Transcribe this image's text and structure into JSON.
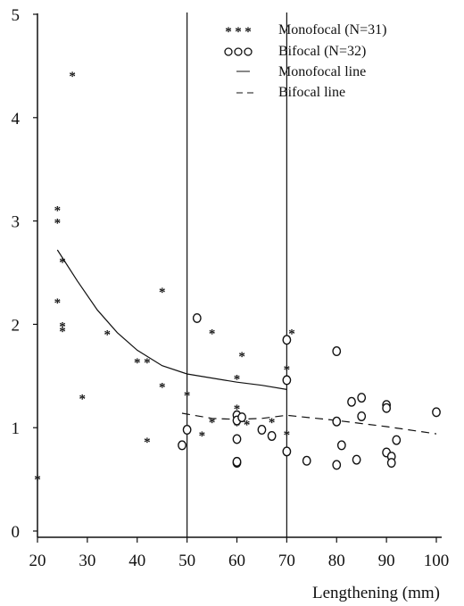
{
  "chart_data": {
    "type": "scatter",
    "title": "",
    "xlabel": "Lengthening (mm)",
    "ylabel": "",
    "xlim": [
      20,
      100
    ],
    "ylim": [
      0,
      5
    ],
    "xticks": [
      "20",
      "30",
      "40",
      "50",
      "60",
      "70",
      "80",
      "90",
      "100"
    ],
    "yticks": [
      "0",
      "1",
      "2",
      "3",
      "4",
      "5"
    ],
    "vertical_reference_lines": [
      50,
      70
    ],
    "grid": false,
    "legend_position": "top-right",
    "series": [
      {
        "name": "Monofocal (N=31)",
        "marker": "asterisk",
        "points": [
          [
            24,
            3.12
          ],
          [
            24,
            3.0
          ],
          [
            24,
            2.23
          ],
          [
            25,
            2.62
          ],
          [
            25,
            2.0
          ],
          [
            25,
            1.95
          ],
          [
            27,
            4.42
          ],
          [
            29,
            1.3
          ],
          [
            34,
            1.92
          ],
          [
            40,
            1.65
          ],
          [
            42,
            1.65
          ],
          [
            42,
            0.88
          ],
          [
            45,
            2.33
          ],
          [
            45,
            1.41
          ],
          [
            50,
            1.33
          ],
          [
            53,
            0.94
          ],
          [
            55,
            1.93
          ],
          [
            55,
            1.07
          ],
          [
            60,
            1.49
          ],
          [
            60,
            1.2
          ],
          [
            60,
            1.13
          ],
          [
            60,
            1.04
          ],
          [
            61,
            1.71
          ],
          [
            62,
            1.05
          ],
          [
            67,
            1.07
          ],
          [
            70,
            1.58
          ],
          [
            70,
            0.95
          ],
          [
            71,
            1.93
          ],
          [
            20,
            0.52
          ]
        ]
      },
      {
        "name": "Bifocal (N=32)",
        "marker": "circle",
        "points": [
          [
            49,
            0.83
          ],
          [
            50,
            0.98
          ],
          [
            52,
            2.06
          ],
          [
            60,
            1.12
          ],
          [
            60,
            1.07
          ],
          [
            60,
            0.89
          ],
          [
            60,
            0.66
          ],
          [
            60,
            0.67
          ],
          [
            61,
            1.1
          ],
          [
            65,
            0.98
          ],
          [
            67,
            0.92
          ],
          [
            70,
            1.85
          ],
          [
            70,
            1.46
          ],
          [
            70,
            0.77
          ],
          [
            74,
            0.68
          ],
          [
            80,
            1.74
          ],
          [
            80,
            1.06
          ],
          [
            80,
            0.64
          ],
          [
            81,
            0.83
          ],
          [
            83,
            1.25
          ],
          [
            84,
            0.69
          ],
          [
            85,
            1.29
          ],
          [
            85,
            1.11
          ],
          [
            90,
            1.22
          ],
          [
            90,
            1.19
          ],
          [
            90,
            0.76
          ],
          [
            91,
            0.72
          ],
          [
            91,
            0.66
          ],
          [
            92,
            0.88
          ],
          [
            100,
            1.15
          ]
        ]
      },
      {
        "name": "Monofocal line",
        "style": "solid",
        "points": [
          [
            24,
            2.72
          ],
          [
            28,
            2.42
          ],
          [
            32,
            2.14
          ],
          [
            36,
            1.92
          ],
          [
            40,
            1.75
          ],
          [
            45,
            1.6
          ],
          [
            50,
            1.52
          ],
          [
            55,
            1.48
          ],
          [
            60,
            1.44
          ],
          [
            65,
            1.41
          ],
          [
            70,
            1.37
          ]
        ]
      },
      {
        "name": "Bifocal line",
        "style": "dashed",
        "points": [
          [
            49,
            1.14
          ],
          [
            55,
            1.09
          ],
          [
            60,
            1.08
          ],
          [
            65,
            1.09
          ],
          [
            70,
            1.12
          ],
          [
            80,
            1.07
          ],
          [
            90,
            1.01
          ],
          [
            100,
            0.94
          ]
        ]
      }
    ]
  }
}
